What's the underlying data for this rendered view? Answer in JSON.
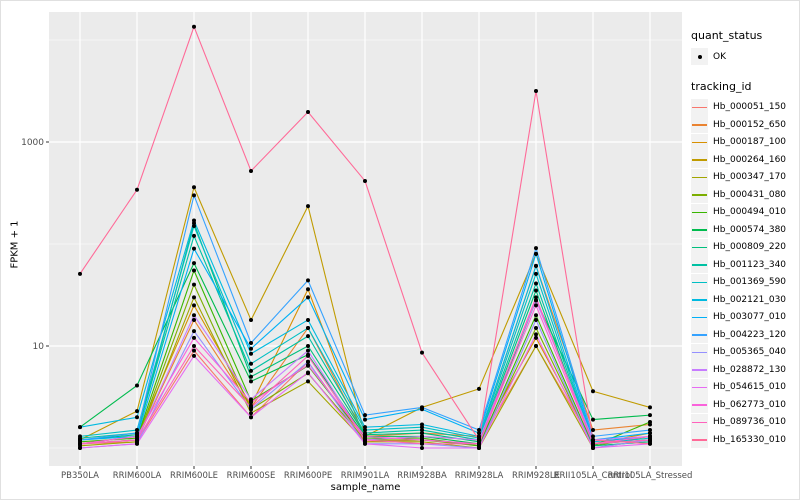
{
  "figure": {
    "y_axis_title": "FPKM + 1",
    "x_axis_title": "sample_name"
  },
  "legend": {
    "quant_status": {
      "title": "quant_status",
      "items": [
        {
          "label": "OK",
          "marker": "point-icon"
        }
      ]
    },
    "tracking": {
      "title": "tracking_id"
    }
  },
  "colors": {
    "panel_bg": "#EBEBEB",
    "grid": "#FFFFFF",
    "point": "#000000",
    "tick_text": "#4D4D4D",
    "axis_tick": "#333333",
    "legend_key_bg": "#F2F2F2",
    "page_bg": "#FFFFFF"
  },
  "chart_data": {
    "type": "line",
    "title": "",
    "xlabel": "sample_name",
    "ylabel": "FPKM + 1",
    "yscale": "log10",
    "ylim": [
      0.67,
      18000
    ],
    "grid": "on",
    "legend_position": "right",
    "point_marker": "black-point",
    "categories": [
      "PB350LA",
      "RRIM600LA",
      "RRIM600LE",
      "RRIM600SE",
      "RRIM600PE",
      "RRIM901LA",
      "RRIM928BA",
      "RRIM928LA",
      "RRIM928LE",
      "RRII105LA_Control",
      "RRII105LA_Stressed"
    ],
    "y_major_breaks": [
      10,
      1000
    ],
    "y_major_labels": [
      "10",
      "1000"
    ],
    "y_minor_breaks": [
      1,
      100,
      10000
    ],
    "series": [
      {
        "name": "Hb_000051_150",
        "color": "#F8766D",
        "values": [
          1.1,
          1.15,
          9,
          2.0,
          7,
          1.15,
          1.2,
          1.1,
          10,
          1.1,
          1.2
        ]
      },
      {
        "name": "Hb_000152_650",
        "color": "#EA8331",
        "values": [
          1.1,
          1.2,
          18,
          2.5,
          15,
          1.3,
          1.4,
          1.3,
          61,
          1.5,
          1.7
        ]
      },
      {
        "name": "Hb_000187_100",
        "color": "#D89000",
        "values": [
          1.1,
          1.3,
          25,
          2.6,
          36,
          1.2,
          1.3,
          1.2,
          12,
          1.1,
          1.4
        ]
      },
      {
        "name": "Hb_000264_160",
        "color": "#C09B00",
        "values": [
          1.2,
          2.3,
          360,
          18,
          235,
          1.3,
          2.5,
          3.8,
          80,
          3.6,
          2.5
        ]
      },
      {
        "name": "Hb_000347_170",
        "color": "#A3A500",
        "values": [
          1.05,
          1.15,
          30,
          2.2,
          4.5,
          1.15,
          1.15,
          1.0,
          10,
          1.0,
          1.2
        ]
      },
      {
        "name": "Hb_000431_080",
        "color": "#7CAE00",
        "values": [
          1.1,
          1.2,
          40,
          2.4,
          5.4,
          1.2,
          1.2,
          1.05,
          15,
          1.05,
          1.3
        ]
      },
      {
        "name": "Hb_000494_010",
        "color": "#39B600",
        "values": [
          1.15,
          1.25,
          55,
          2.9,
          6.4,
          1.25,
          1.25,
          1.05,
          20,
          1.05,
          1.8
        ]
      },
      {
        "name": "Hb_000574_380",
        "color": "#00BB4E",
        "values": [
          1.6,
          4.1,
          65,
          4.5,
          8.2,
          1.3,
          1.3,
          1.1,
          28,
          1.9,
          2.1
        ]
      },
      {
        "name": "Hb_000809_220",
        "color": "#00BF7D",
        "values": [
          1.2,
          1.35,
          160,
          5.0,
          10,
          1.35,
          1.4,
          1.15,
          35,
          1.05,
          1.15
        ]
      },
      {
        "name": "Hb_001123_340",
        "color": "#00C1A3",
        "values": [
          1.25,
          1.4,
          120,
          5.7,
          12.5,
          1.4,
          1.5,
          1.2,
          41,
          1.1,
          1.2
        ]
      },
      {
        "name": "Hb_001369_590",
        "color": "#00BFC4",
        "values": [
          1.3,
          1.5,
          150,
          6.7,
          15,
          1.5,
          1.6,
          1.25,
          51,
          1.1,
          1.25
        ]
      },
      {
        "name": "Hb_002121_030",
        "color": "#00BAE0",
        "values": [
          1.6,
          2.0,
          170,
          8.4,
          18,
          1.6,
          1.7,
          1.3,
          61,
          1.15,
          1.3
        ]
      },
      {
        "name": "Hb_003077_010",
        "color": "#00B0F6",
        "values": [
          1.2,
          1.3,
          90,
          9.4,
          30,
          1.9,
          2.4,
          1.4,
          80,
          1.2,
          1.4
        ]
      },
      {
        "name": "Hb_004223_120",
        "color": "#35A2FF",
        "values": [
          1.2,
          1.4,
          300,
          10.7,
          44,
          2.1,
          2.5,
          1.5,
          91,
          1.3,
          1.5
        ]
      },
      {
        "name": "Hb_005365_040",
        "color": "#9590FF",
        "values": [
          1.0,
          1.1,
          14,
          2.4,
          7,
          1.1,
          1.1,
          1.0,
          18,
          1.0,
          1.2
        ]
      },
      {
        "name": "Hb_028872_130",
        "color": "#C77CFF",
        "values": [
          1.1,
          1.2,
          20,
          3.0,
          9,
          1.2,
          1.3,
          1.2,
          28,
          1.2,
          1.3
        ]
      },
      {
        "name": "Hb_054615_010",
        "color": "#E76BF3",
        "values": [
          1.0,
          1.1,
          8,
          2.0,
          5.5,
          1.1,
          1.0,
          1.0,
          13,
          1.0,
          1.1
        ]
      },
      {
        "name": "Hb_062773_010",
        "color": "#FA62DB",
        "values": [
          1.1,
          1.3,
          12,
          2.8,
          6.5,
          1.3,
          1.2,
          1.1,
          25,
          1.1,
          1.3
        ]
      },
      {
        "name": "Hb_089736_010",
        "color": "#FF62BC",
        "values": [
          1.1,
          1.2,
          10,
          2.5,
          8,
          1.2,
          1.1,
          1.1,
          30,
          1.1,
          1.2
        ]
      },
      {
        "name": "Hb_165330_010",
        "color": "#FF6A98",
        "values": [
          51,
          340,
          13500,
          520,
          1970,
          415,
          8.6,
          1.2,
          3160,
          1.2,
          1.1
        ]
      }
    ]
  }
}
